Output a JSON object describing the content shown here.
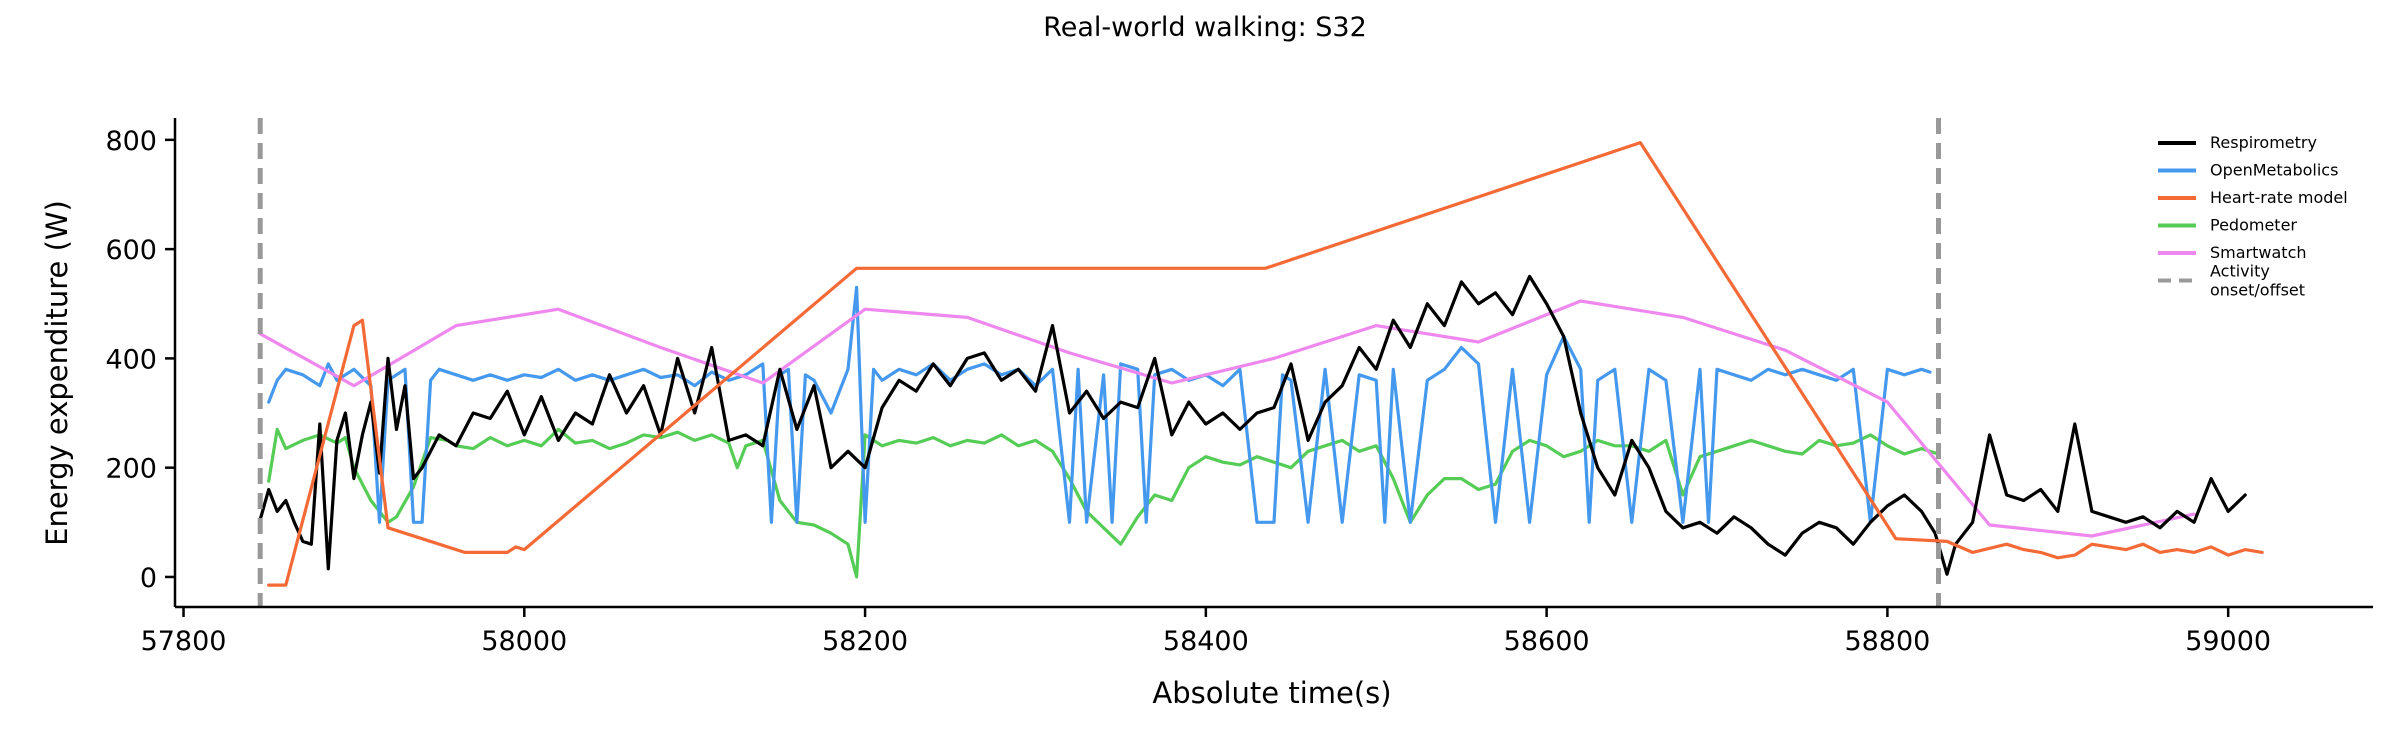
{
  "chart_data": {
    "type": "line",
    "title": "Real-world walking: S32",
    "xlabel": "Absolute time(s)",
    "ylabel": "Energy expenditure (W)",
    "xlim": [
      57795,
      59085
    ],
    "ylim": [
      -55,
      840
    ],
    "xticks": [
      57800,
      58000,
      58200,
      58400,
      58600,
      58800,
      59000
    ],
    "yticks": [
      0,
      200,
      400,
      600,
      800
    ],
    "grid": false,
    "legend_position": "top-right",
    "markers": [
      {
        "name": "Activity onset/offset",
        "x": 57845,
        "color": "#999999",
        "style": "dashed"
      },
      {
        "name": "Activity onset/offset",
        "x": 58830,
        "color": "#999999",
        "style": "dashed"
      }
    ],
    "legend": [
      {
        "label": "Respirometry",
        "color": "#000000",
        "style": "solid"
      },
      {
        "label": "OpenMetabolics",
        "color": "#4499ee",
        "style": "solid"
      },
      {
        "label": "Heart-rate model",
        "color": "#f46a36",
        "style": "solid"
      },
      {
        "label": "Pedometer",
        "color": "#55cc55",
        "style": "solid"
      },
      {
        "label": "Smartwatch",
        "color": "#ee88ee",
        "style": "solid"
      },
      {
        "label": "Activity onset/offset",
        "color": "#999999",
        "style": "dashed"
      }
    ],
    "series": [
      {
        "name": "Pedometer",
        "color": "#55cc55",
        "x": [
          57850,
          57855,
          57860,
          57870,
          57880,
          57890,
          57895,
          57900,
          57910,
          57920,
          57925,
          57935,
          57945,
          57955,
          57960,
          57970,
          57980,
          57990,
          58000,
          58010,
          58020,
          58030,
          58040,
          58050,
          58060,
          58070,
          58080,
          58090,
          58100,
          58110,
          58120,
          58125,
          58130,
          58140,
          58150,
          58160,
          58170,
          58180,
          58190,
          58195,
          58200,
          58210,
          58220,
          58230,
          58240,
          58250,
          58260,
          58270,
          58280,
          58290,
          58300,
          58310,
          58320,
          58330,
          58340,
          58350,
          58360,
          58370,
          58380,
          58390,
          58400,
          58410,
          58420,
          58430,
          58440,
          58450,
          58460,
          58470,
          58480,
          58490,
          58500,
          58510,
          58520,
          58530,
          58540,
          58550,
          58560,
          58570,
          58580,
          58590,
          58600,
          58610,
          58620,
          58630,
          58640,
          58650,
          58660,
          58670,
          58680,
          58690,
          58700,
          58710,
          58720,
          58730,
          58740,
          58750,
          58760,
          58770,
          58780,
          58790,
          58800,
          58810,
          58820,
          58830
        ],
        "values": [
          175,
          270,
          235,
          250,
          260,
          245,
          255,
          200,
          140,
          100,
          110,
          165,
          255,
          250,
          240,
          235,
          255,
          240,
          250,
          240,
          270,
          245,
          250,
          235,
          245,
          260,
          255,
          265,
          250,
          260,
          245,
          200,
          240,
          250,
          140,
          100,
          95,
          80,
          60,
          0,
          260,
          240,
          250,
          245,
          255,
          240,
          250,
          245,
          260,
          240,
          250,
          230,
          180,
          120,
          90,
          60,
          110,
          150,
          140,
          200,
          220,
          210,
          205,
          220,
          210,
          200,
          230,
          240,
          250,
          230,
          240,
          180,
          100,
          150,
          180,
          180,
          160,
          170,
          230,
          250,
          240,
          220,
          230,
          250,
          240,
          240,
          230,
          250,
          150,
          220,
          230,
          240,
          250,
          240,
          230,
          225,
          250,
          240,
          245,
          260,
          240,
          225,
          235,
          225
        ]
      },
      {
        "name": "OpenMetabolics",
        "color": "#4499ee",
        "x": [
          57850,
          57855,
          57860,
          57870,
          57880,
          57885,
          57890,
          57900,
          57910,
          57915,
          57920,
          57930,
          57935,
          57940,
          57945,
          57950,
          57960,
          57970,
          57980,
          57990,
          58000,
          58010,
          58020,
          58030,
          58040,
          58050,
          58060,
          58070,
          58080,
          58090,
          58100,
          58110,
          58120,
          58130,
          58140,
          58145,
          58150,
          58155,
          58160,
          58165,
          58170,
          58180,
          58190,
          58195,
          58200,
          58205,
          58210,
          58220,
          58230,
          58240,
          58250,
          58260,
          58270,
          58280,
          58290,
          58300,
          58310,
          58320,
          58325,
          58330,
          58340,
          58345,
          58350,
          58360,
          58365,
          58370,
          58380,
          58390,
          58400,
          58410,
          58420,
          58430,
          58440,
          58445,
          58450,
          58460,
          58470,
          58480,
          58490,
          58500,
          58505,
          58510,
          58520,
          58530,
          58540,
          58550,
          58560,
          58570,
          58580,
          58590,
          58600,
          58610,
          58620,
          58625,
          58630,
          58640,
          58650,
          58660,
          58670,
          58680,
          58690,
          58695,
          58700,
          58710,
          58720,
          58730,
          58740,
          58750,
          58760,
          58770,
          58780,
          58790,
          58800,
          58810,
          58820,
          58825
        ],
        "values": [
          320,
          360,
          380,
          370,
          350,
          390,
          360,
          380,
          350,
          100,
          360,
          380,
          100,
          100,
          360,
          380,
          370,
          360,
          370,
          360,
          370,
          365,
          380,
          360,
          370,
          360,
          370,
          380,
          365,
          370,
          350,
          375,
          360,
          370,
          390,
          100,
          370,
          380,
          100,
          370,
          360,
          300,
          380,
          530,
          100,
          380,
          360,
          380,
          370,
          390,
          360,
          380,
          390,
          370,
          380,
          350,
          380,
          100,
          380,
          100,
          370,
          100,
          390,
          380,
          100,
          370,
          380,
          360,
          370,
          350,
          380,
          100,
          100,
          370,
          360,
          100,
          380,
          100,
          370,
          360,
          100,
          380,
          100,
          360,
          380,
          420,
          390,
          100,
          380,
          100,
          370,
          440,
          380,
          100,
          360,
          380,
          100,
          380,
          360,
          100,
          380,
          100,
          380,
          370,
          360,
          380,
          370,
          380,
          370,
          360,
          380,
          100,
          380,
          370,
          380,
          375
        ]
      },
      {
        "name": "Smartwatch",
        "color": "#ee88ee",
        "x": [
          57845,
          57900,
          57960,
          58020,
          58080,
          58140,
          58200,
          58260,
          58320,
          58380,
          58440,
          58500,
          58560,
          58620,
          58680,
          58740,
          58800,
          58860,
          58920,
          58980
        ],
        "values": [
          445,
          350,
          460,
          490,
          420,
          355,
          490,
          475,
          410,
          355,
          400,
          460,
          430,
          505,
          475,
          415,
          320,
          95,
          75,
          115
        ]
      },
      {
        "name": "Respirometry",
        "color": "#000000",
        "x": [
          57845,
          57850,
          57855,
          57860,
          57865,
          57870,
          57875,
          57880,
          57885,
          57890,
          57895,
          57900,
          57905,
          57910,
          57915,
          57920,
          57925,
          57930,
          57935,
          57940,
          57950,
          57960,
          57970,
          57980,
          57990,
          58000,
          58010,
          58020,
          58030,
          58040,
          58050,
          58060,
          58070,
          58080,
          58090,
          58100,
          58110,
          58120,
          58130,
          58140,
          58150,
          58160,
          58170,
          58180,
          58190,
          58200,
          58210,
          58220,
          58230,
          58240,
          58250,
          58260,
          58270,
          58280,
          58290,
          58300,
          58310,
          58320,
          58330,
          58340,
          58350,
          58360,
          58370,
          58380,
          58390,
          58400,
          58410,
          58420,
          58430,
          58440,
          58450,
          58460,
          58470,
          58480,
          58490,
          58500,
          58510,
          58520,
          58530,
          58540,
          58550,
          58560,
          58570,
          58580,
          58590,
          58600,
          58610,
          58620,
          58630,
          58640,
          58650,
          58660,
          58670,
          58680,
          58690,
          58700,
          58710,
          58720,
          58730,
          58740,
          58750,
          58760,
          58770,
          58780,
          58790,
          58800,
          58810,
          58820,
          58828,
          58835,
          58840,
          58850,
          58860,
          58870,
          58880,
          58890,
          58900,
          58910,
          58920,
          58930,
          58940,
          58950,
          58960,
          58970,
          58980,
          58990,
          59000,
          59010
        ],
        "values": [
          105,
          160,
          120,
          140,
          100,
          65,
          60,
          280,
          15,
          250,
          300,
          180,
          260,
          320,
          190,
          400,
          270,
          350,
          180,
          200,
          260,
          240,
          300,
          290,
          340,
          260,
          330,
          250,
          300,
          280,
          370,
          300,
          350,
          260,
          400,
          300,
          420,
          250,
          260,
          240,
          380,
          270,
          350,
          200,
          230,
          200,
          310,
          360,
          340,
          390,
          350,
          400,
          410,
          360,
          380,
          340,
          460,
          300,
          340,
          290,
          320,
          310,
          400,
          260,
          320,
          280,
          300,
          270,
          300,
          310,
          390,
          250,
          320,
          350,
          420,
          380,
          470,
          420,
          500,
          460,
          540,
          500,
          520,
          480,
          550,
          500,
          440,
          300,
          200,
          150,
          250,
          200,
          120,
          90,
          100,
          80,
          110,
          90,
          60,
          40,
          80,
          100,
          90,
          60,
          100,
          130,
          150,
          120,
          80,
          5,
          60,
          100,
          260,
          150,
          140,
          160,
          120,
          280,
          120,
          110,
          100,
          110,
          90,
          120,
          100,
          180,
          120,
          150
        ]
      },
      {
        "name": "Heart-rate model",
        "color": "#f46a36",
        "x": [
          57850,
          57860,
          57900,
          57905,
          57920,
          57940,
          57965,
          57990,
          57995,
          58000,
          58195,
          58435,
          58655,
          58805,
          58835,
          58850,
          58870,
          58880,
          58890,
          58900,
          58910,
          58920,
          58930,
          58940,
          58950,
          58960,
          58970,
          58980,
          58990,
          59000,
          59010,
          59020
        ],
        "values": [
          -15,
          -15,
          460,
          470,
          90,
          70,
          45,
          45,
          55,
          50,
          565,
          565,
          795,
          70,
          65,
          45,
          60,
          50,
          45,
          35,
          40,
          60,
          55,
          50,
          60,
          45,
          50,
          45,
          55,
          40,
          50,
          45
        ]
      }
    ]
  }
}
